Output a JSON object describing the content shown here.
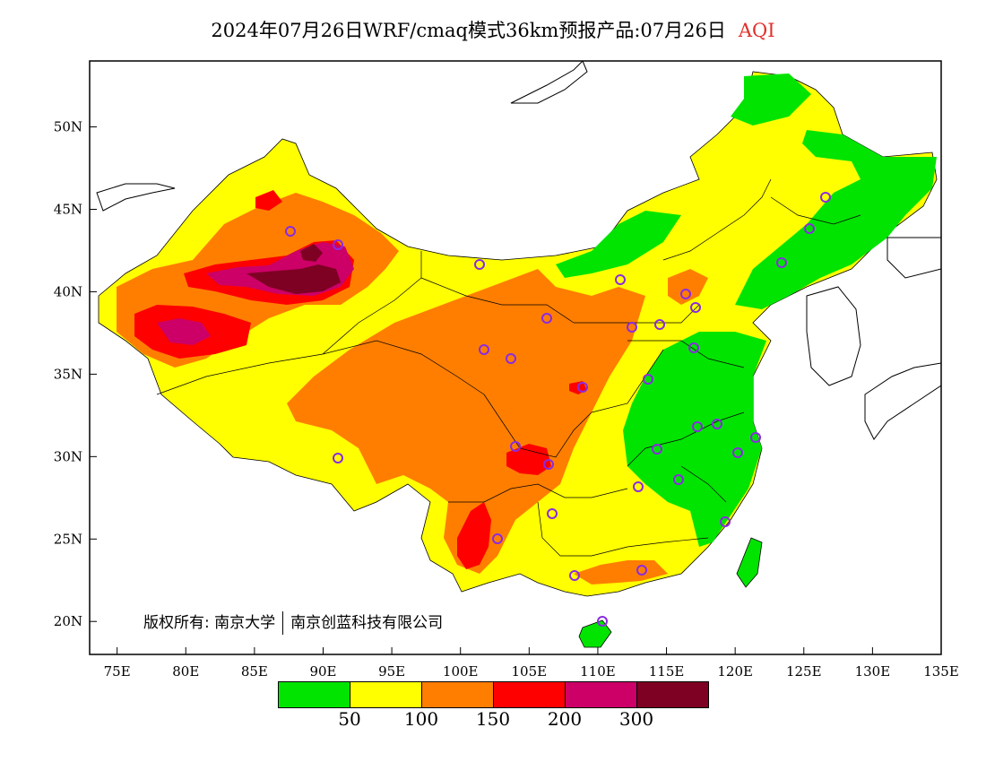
{
  "title": {
    "main": "2024年07月26日WRF/cmaq模式36km预报产品:07月26日",
    "variable": "AQI"
  },
  "axes": {
    "x_ticks": [
      "75E",
      "80E",
      "85E",
      "90E",
      "95E",
      "100E",
      "105E",
      "110E",
      "115E",
      "120E",
      "125E",
      "130E",
      "135E"
    ],
    "y_ticks": [
      "50N",
      "45N",
      "40N",
      "35N",
      "30N",
      "25N",
      "20N"
    ],
    "lon_range": [
      73,
      135
    ],
    "lat_range": [
      18,
      54
    ]
  },
  "copyright": {
    "left": "版权所有: 南京大学",
    "right": "南京创蓝科技有限公司"
  },
  "legend": {
    "colors": [
      "#00e400",
      "#ffff00",
      "#ff7e00",
      "#ff0000",
      "#cc0066",
      "#7e0023"
    ],
    "labels": [
      "50",
      "100",
      "150",
      "200",
      "300"
    ]
  },
  "palette": {
    "good": "#00e400",
    "moderate": "#ffff00",
    "usg": "#ff7e00",
    "unhealthy": "#ff0000",
    "very_unhealthy": "#cc0066",
    "hazardous": "#7e0023",
    "station_marker": "#8a2be2"
  }
}
